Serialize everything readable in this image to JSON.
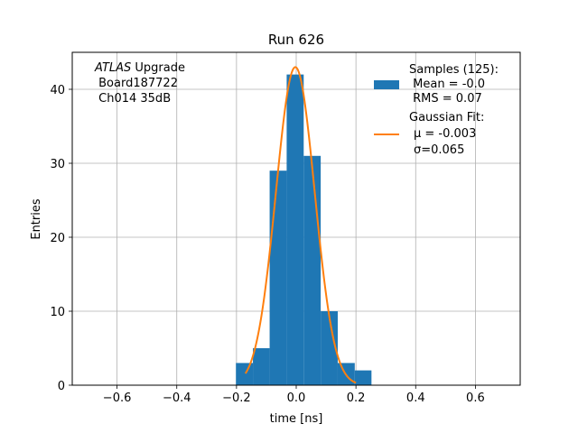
{
  "chart_data": {
    "type": "bar",
    "title": "Run 626",
    "xlabel": "time [ns]",
    "ylabel": "Entries",
    "xlim": [
      -0.75,
      0.75
    ],
    "ylim": [
      0,
      45
    ],
    "x_ticks": [
      -0.6,
      -0.4,
      -0.2,
      0.0,
      0.2,
      0.4,
      0.6
    ],
    "x_tick_labels": [
      "−0.6",
      "−0.4",
      "−0.2",
      "0.0",
      "0.2",
      "0.4",
      "0.6"
    ],
    "y_ticks": [
      0,
      10,
      20,
      30,
      40
    ],
    "y_tick_labels": [
      "0",
      "10",
      "20",
      "30",
      "40"
    ],
    "grid": true,
    "bin_edges": [
      -0.202,
      -0.145,
      -0.089,
      -0.032,
      0.025,
      0.082,
      0.139,
      0.196,
      0.252
    ],
    "counts": [
      3,
      5,
      29,
      42,
      31,
      10,
      3,
      2
    ],
    "bar_color": "#1f77b4",
    "fit": {
      "type": "gaussian",
      "mu": -0.003,
      "sigma": 0.065,
      "amplitude": 43,
      "x_range": [
        -0.17,
        0.2
      ],
      "color": "#ff7f0e"
    },
    "annotation": {
      "italic": "ATLAS",
      "rest": " Upgrade",
      "line2": " Board187722",
      "line3": " Ch014 35dB"
    },
    "legend": {
      "position": "top-right",
      "samples": [
        "Samples (125):",
        " Mean = -0.0",
        " RMS = 0.07"
      ],
      "fit_title": "Gaussian Fit:",
      "fit_mu_label": "μ = -0.003",
      "fit_sigma_label": "σ=0.065"
    }
  }
}
